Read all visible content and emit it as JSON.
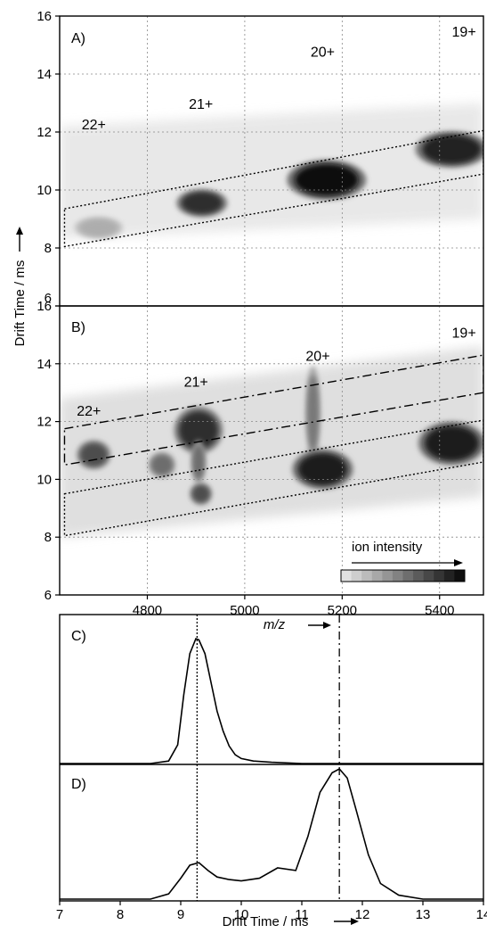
{
  "chart_data": [
    {
      "type": "heatmap",
      "panel_label": "A)",
      "xlim": [
        4620,
        5490
      ],
      "ylim": [
        6,
        16
      ],
      "yticks": [
        6,
        8,
        10,
        12,
        14,
        16
      ],
      "grid": true,
      "charge_states": [
        {
          "label": "22+",
          "x": 4690,
          "y": 12.1
        },
        {
          "label": "21+",
          "x": 4910,
          "y": 12.8
        },
        {
          "label": "20+",
          "x": 5160,
          "y": 14.6
        },
        {
          "label": "19+",
          "x": 5450,
          "y": 15.3
        }
      ],
      "spots": [
        {
          "x": 4912,
          "y": 9.55,
          "rx": 42,
          "ry": 0.38,
          "intensity": 0.85
        },
        {
          "x": 5168,
          "y": 10.35,
          "rx": 65,
          "ry": 0.55,
          "intensity": 1.0
        },
        {
          "x": 5425,
          "y": 11.4,
          "rx": 60,
          "ry": 0.5,
          "intensity": 0.92
        },
        {
          "x": 4700,
          "y": 8.7,
          "rx": 40,
          "ry": 0.3,
          "intensity": 0.25
        }
      ],
      "region_boxes": [
        {
          "style": "dotted",
          "points": [
            [
              4630,
              9.35
            ],
            [
              5490,
              12.05
            ],
            [
              5490,
              10.55
            ],
            [
              4630,
              8.05
            ]
          ]
        }
      ]
    },
    {
      "type": "heatmap",
      "panel_label": "B)",
      "xlim": [
        4620,
        5490
      ],
      "ylim": [
        6,
        16
      ],
      "xticks": [
        4800,
        5000,
        5200,
        5400
      ],
      "yticks": [
        6,
        8,
        10,
        12,
        14,
        16
      ],
      "xlabel": "m/z",
      "grid": true,
      "charge_states": [
        {
          "label": "22+",
          "x": 4680,
          "y": 12.2
        },
        {
          "label": "21+",
          "x": 4900,
          "y": 13.2
        },
        {
          "label": "20+",
          "x": 5150,
          "y": 14.1
        },
        {
          "label": "19+",
          "x": 5450,
          "y": 14.9
        }
      ],
      "spots": [
        {
          "x": 4690,
          "y": 10.85,
          "rx": 28,
          "ry": 0.4,
          "intensity": 0.7
        },
        {
          "x": 4830,
          "y": 10.5,
          "rx": 22,
          "ry": 0.35,
          "intensity": 0.55
        },
        {
          "x": 4905,
          "y": 11.7,
          "rx": 40,
          "ry": 0.65,
          "intensity": 0.85
        },
        {
          "x": 4905,
          "y": 10.6,
          "rx": 12,
          "ry": 0.6,
          "intensity": 0.55
        },
        {
          "x": 4910,
          "y": 9.5,
          "rx": 18,
          "ry": 0.3,
          "intensity": 0.7
        },
        {
          "x": 5140,
          "y": 12.3,
          "rx": 12,
          "ry": 1.3,
          "intensity": 0.5
        },
        {
          "x": 5160,
          "y": 10.35,
          "rx": 50,
          "ry": 0.55,
          "intensity": 0.95
        },
        {
          "x": 5425,
          "y": 11.25,
          "rx": 55,
          "ry": 0.6,
          "intensity": 0.95
        }
      ],
      "region_boxes": [
        {
          "style": "dotted",
          "points": [
            [
              4630,
              9.5
            ],
            [
              5490,
              12.05
            ],
            [
              5490,
              10.6
            ],
            [
              4630,
              8.05
            ]
          ]
        },
        {
          "style": "dash-dot",
          "points": [
            [
              4630,
              11.75
            ],
            [
              5490,
              14.3
            ],
            [
              5490,
              13.0
            ],
            [
              4630,
              10.5
            ]
          ]
        }
      ],
      "colorbar": {
        "label": "ion intensity"
      }
    },
    {
      "type": "line",
      "panel_label": "C)",
      "xlim": [
        7,
        14
      ],
      "x": [
        7.0,
        8.5,
        8.8,
        8.95,
        9.05,
        9.15,
        9.25,
        9.3,
        9.4,
        9.5,
        9.6,
        9.7,
        9.8,
        9.9,
        10.0,
        10.2,
        10.5,
        11.0,
        12.0,
        14.0
      ],
      "y": [
        0.0,
        0.0,
        0.02,
        0.15,
        0.55,
        0.88,
        1.0,
        0.99,
        0.88,
        0.65,
        0.42,
        0.26,
        0.14,
        0.07,
        0.04,
        0.02,
        0.01,
        0.0,
        0.0,
        0.0
      ],
      "reference_lines": [
        {
          "x": 9.27,
          "style": "dotted"
        },
        {
          "x": 11.62,
          "style": "dash-dot"
        }
      ]
    },
    {
      "type": "line",
      "panel_label": "D)",
      "xlim": [
        7,
        14
      ],
      "xticks": [
        7,
        8,
        9,
        10,
        11,
        12,
        13,
        14
      ],
      "xlabel": "Drift Time / ms",
      "ylabel": "Drift Time / ms",
      "x": [
        7.0,
        8.5,
        8.8,
        9.0,
        9.15,
        9.3,
        9.45,
        9.6,
        9.8,
        10.0,
        10.3,
        10.6,
        10.9,
        11.1,
        11.3,
        11.5,
        11.62,
        11.75,
        11.9,
        12.1,
        12.3,
        12.6,
        13.0,
        14.0
      ],
      "y": [
        0.0,
        0.0,
        0.04,
        0.16,
        0.26,
        0.28,
        0.22,
        0.17,
        0.15,
        0.14,
        0.16,
        0.24,
        0.22,
        0.48,
        0.82,
        0.97,
        1.0,
        0.93,
        0.68,
        0.34,
        0.12,
        0.03,
        0.0,
        0.0
      ],
      "reference_lines": [
        {
          "x": 9.27,
          "style": "dotted"
        },
        {
          "x": 11.62,
          "style": "dash-dot"
        }
      ]
    }
  ]
}
